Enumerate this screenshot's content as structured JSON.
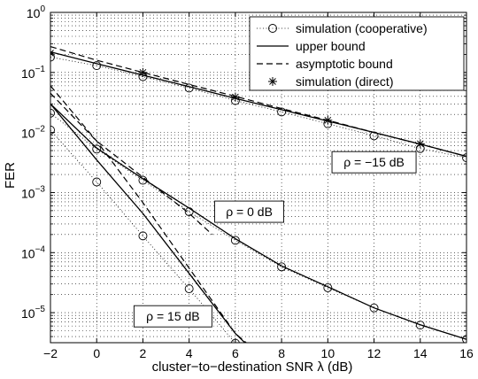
{
  "chart_data": {
    "type": "line",
    "xlabel": "cluster−to−destination SNR λ (dB)",
    "ylabel": "FER",
    "xlim": [
      -2,
      16
    ],
    "ylim_log10": [
      -5.5,
      0
    ],
    "yscale": "log",
    "grid": true,
    "legend_position": "top-right",
    "x_ticks": [
      "−2",
      "0",
      "2",
      "4",
      "6",
      "8",
      "10",
      "12",
      "14",
      "16"
    ],
    "x_tick_values": [
      -2,
      0,
      2,
      4,
      6,
      8,
      10,
      12,
      14,
      16
    ],
    "y_ticks": [
      {
        "base": "10",
        "exp": "0",
        "value": 1
      },
      {
        "base": "10",
        "exp": "−1",
        "value": 0.1
      },
      {
        "base": "10",
        "exp": "−2",
        "value": 0.01
      },
      {
        "base": "10",
        "exp": "−3",
        "value": 0.001
      },
      {
        "base": "10",
        "exp": "−4",
        "value": 0.0001
      },
      {
        "base": "10",
        "exp": "−5",
        "value": 1e-05
      }
    ],
    "legend": [
      {
        "label": "simulation (cooperative)",
        "marker": "circle",
        "line": "dotted"
      },
      {
        "label": "upper bound",
        "marker": "none",
        "line": "solid"
      },
      {
        "label": "asymptotic bound",
        "marker": "none",
        "line": "dashed"
      },
      {
        "label": "simulation (direct)",
        "marker": "asterisk",
        "line": "none"
      }
    ],
    "annotations": [
      {
        "text": "ρ = −15 dB",
        "x": 12,
        "y": 0.0032
      },
      {
        "text": "ρ = 0 dB",
        "x": 6.6,
        "y": 0.00048
      },
      {
        "text": "ρ = 15 dB",
        "x": 3.3,
        "y": 8.7e-06
      }
    ],
    "series": [
      {
        "label": "ρ = −15 dB",
        "upper_bound": {
          "x": [
            -2,
            0,
            2,
            4,
            6,
            8,
            10,
            12,
            14,
            16
          ],
          "y": [
            0.22,
            0.14,
            0.09,
            0.058,
            0.037,
            0.024,
            0.0155,
            0.01,
            0.0064,
            0.004
          ]
        },
        "asymptotic_bound": {
          "x": [
            -2,
            0,
            2,
            4,
            6,
            8,
            10,
            12,
            14,
            16
          ],
          "y": [
            0.27,
            0.16,
            0.1,
            0.063,
            0.04,
            0.025,
            0.016,
            0.01,
            0.0064,
            0.004
          ]
        },
        "simulation_cooperative": {
          "x": [
            -2,
            0,
            2,
            4,
            6,
            8,
            10,
            12,
            14,
            16
          ],
          "y": [
            0.18,
            0.13,
            0.085,
            0.055,
            0.034,
            0.022,
            0.014,
            0.0088,
            0.0054,
            0.0038
          ]
        },
        "simulation_direct": {
          "x": [
            -2,
            2,
            6,
            10,
            14
          ],
          "y": [
            0.21,
            0.1,
            0.039,
            0.016,
            0.0065
          ]
        }
      },
      {
        "label": "ρ = 0 dB",
        "upper_bound": {
          "x": [
            -2,
            0,
            2,
            4,
            6,
            8,
            10,
            12,
            14,
            16
          ],
          "y": [
            0.03,
            0.0055,
            0.0017,
            0.00055,
            0.00017,
            6e-05,
            2.7e-05,
            1.2e-05,
            6.3e-06,
            3.6e-06
          ]
        },
        "asymptotic_bound": {
          "x": [
            -2,
            0,
            2,
            4,
            5
          ],
          "y": [
            0.045,
            0.0072,
            0.0018,
            0.00045,
            0.0002
          ]
        },
        "simulation_cooperative": {
          "x": [
            -2,
            0,
            2,
            4,
            6,
            8,
            10,
            12,
            14,
            16
          ],
          "y": [
            0.021,
            0.0053,
            0.0016,
            0.00048,
            0.00016,
            5.8e-05,
            2.6e-05,
            1.2e-05,
            6.2e-06,
            3.6e-06
          ]
        }
      },
      {
        "label": "ρ = 15 dB",
        "upper_bound": {
          "x": [
            -2,
            0,
            2,
            4,
            6,
            6.4
          ],
          "y": [
            0.03,
            0.0035,
            0.00045,
            4.5e-05,
            4.5e-06,
            3.2e-06
          ]
        },
        "asymptotic_bound": {
          "x": [
            -2,
            0,
            2,
            4,
            6,
            6.5
          ],
          "y": [
            0.06,
            0.0072,
            0.00068,
            5.5e-05,
            4.5e-06,
            3.1e-06
          ]
        },
        "simulation_cooperative": {
          "x": [
            -2,
            0,
            2,
            4,
            6
          ],
          "y": [
            0.011,
            0.0015,
            0.00019,
            2.5e-05,
            3.1e-06
          ]
        }
      }
    ]
  }
}
